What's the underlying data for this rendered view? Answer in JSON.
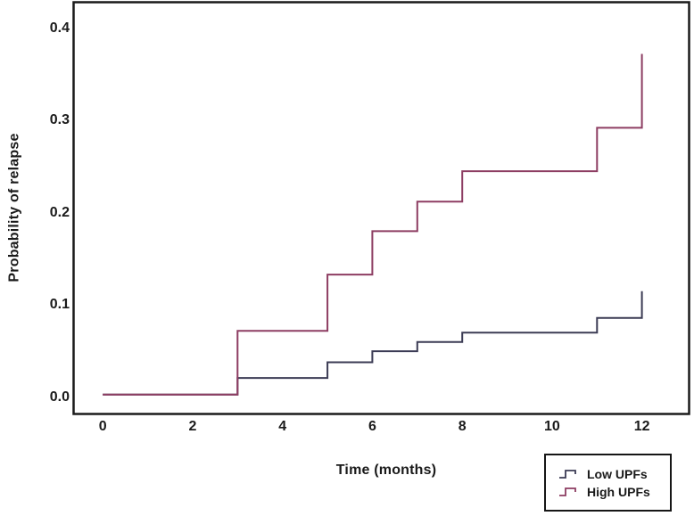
{
  "figure": {
    "background": "#ffffff",
    "axis_color": "#1a1a1a"
  },
  "chart_data": {
    "type": "line",
    "subtype": "step",
    "title": "",
    "xlabel": "Time (months)",
    "ylabel": "Probability of relapse",
    "xlim": [
      -0.65,
      13.05
    ],
    "ylim": [
      -0.018,
      0.428
    ],
    "x_ticks": [
      0,
      2,
      4,
      6,
      8,
      10,
      12
    ],
    "y_ticks": [
      0.0,
      0.1,
      0.2,
      0.3,
      0.4
    ],
    "grid": false,
    "legend_position": "outside-bottom-right",
    "series": [
      {
        "name": "Low UPFs",
        "color": "#3b3b54",
        "steps": [
          [
            0,
            0.003
          ],
          [
            3,
            0.021
          ],
          [
            5,
            0.038
          ],
          [
            6,
            0.05
          ],
          [
            7,
            0.06
          ],
          [
            8,
            0.07
          ],
          [
            11,
            0.086
          ],
          [
            12,
            0.115
          ]
        ]
      },
      {
        "name": "High UPFs",
        "color": "#8d3d62",
        "steps": [
          [
            0,
            0.003
          ],
          [
            3,
            0.072
          ],
          [
            5,
            0.133
          ],
          [
            6,
            0.18
          ],
          [
            7,
            0.212
          ],
          [
            8,
            0.245
          ],
          [
            11,
            0.292
          ],
          [
            12,
            0.372
          ]
        ]
      }
    ]
  }
}
